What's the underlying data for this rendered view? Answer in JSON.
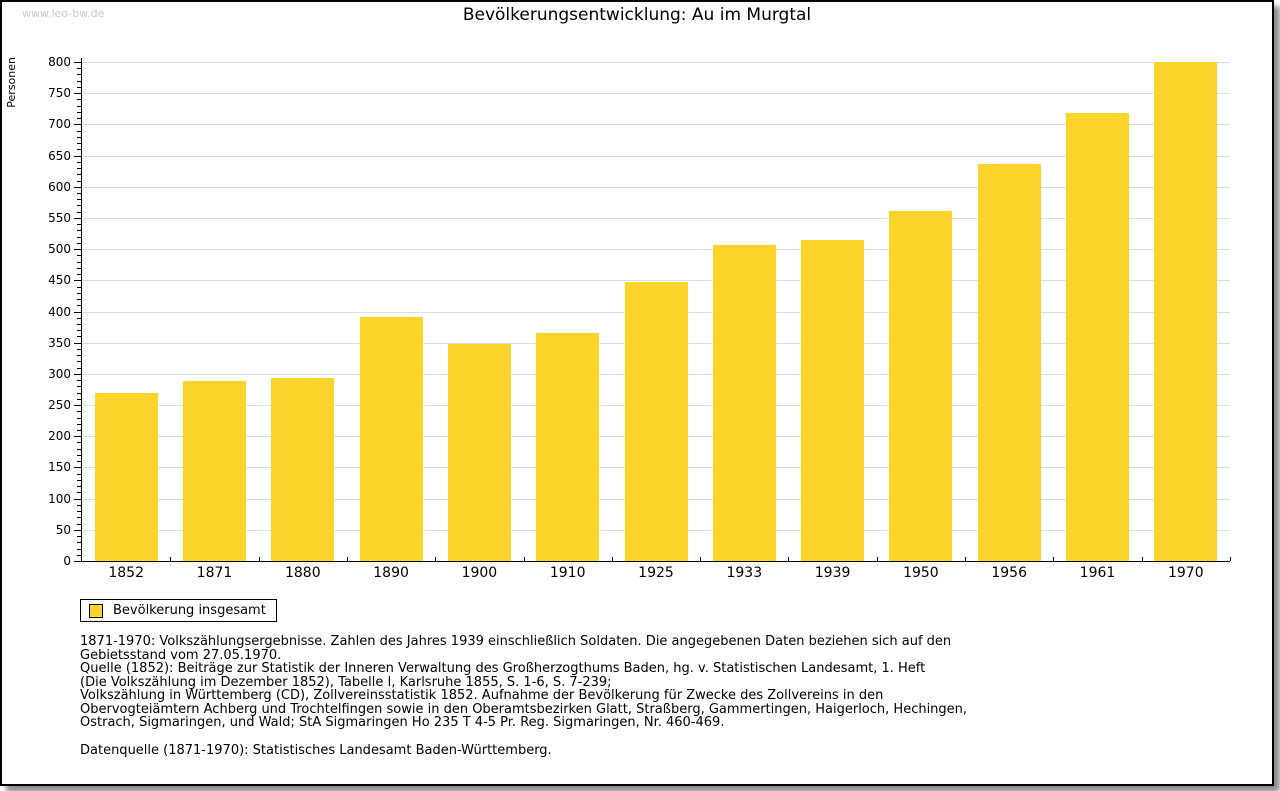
{
  "page": {
    "watermark": "www.leo-bw.de",
    "title": "Bevölkerungsentwicklung: Au im Murgtal"
  },
  "chart_data": {
    "type": "bar",
    "title": "Bevölkerungsentwicklung: Au im Murgtal",
    "xlabel": "",
    "ylabel": "Personen",
    "categories": [
      "1852",
      "1871",
      "1880",
      "1890",
      "1900",
      "1910",
      "1925",
      "1933",
      "1939",
      "1950",
      "1956",
      "1961",
      "1970"
    ],
    "series": [
      {
        "name": "Bevölkerung insgesamt",
        "values": [
          270,
          288,
          294,
          391,
          348,
          365,
          448,
          506,
          514,
          562,
          637,
          718,
          800
        ]
      }
    ],
    "ylim": [
      0,
      800
    ],
    "ytick_step": 50,
    "y_minor_step": 10,
    "grid": true,
    "legend_position": "bottom-left",
    "bar_color": "#fdd42c",
    "gridline_color": "#dcdcdc",
    "axis_color": "#000000"
  },
  "legend": {
    "label": "Bevölkerung insgesamt",
    "swatch_color": "#fdd42c"
  },
  "footnotes": {
    "lines": [
      "1871-1970: Volkszählungsergebnisse. Zahlen des Jahres 1939 einschließlich Soldaten. Die angegebenen Daten beziehen sich auf den",
      "Gebietsstand vom 27.05.1970.",
      "Quelle (1852): Beiträge zur Statistik der Inneren Verwaltung des Großherzogthums Baden, hg. v. Statistischen Landesamt, 1. Heft",
      "(Die Volkszählung im Dezember 1852), Tabelle I, Karlsruhe 1855, S. 1-6, S. 7-239;",
      "Volkszählung in Württemberg (CD), Zollvereinsstatistik 1852. Aufnahme der Bevölkerung für Zwecke des Zollvereins in den",
      "Obervogteiämtern Achberg und Trochtelfingen sowie in den Oberamtsbezirken Glatt, Straßberg, Gammertingen, Haigerloch, Hechingen,",
      "Ostrach, Sigmaringen, und Wald; StA Sigmaringen Ho 235 T 4-5 Pr. Reg. Sigmaringen, Nr. 460-469."
    ],
    "datasource": "Datenquelle (1871-1970): Statistisches Landesamt Baden-Württemberg."
  }
}
